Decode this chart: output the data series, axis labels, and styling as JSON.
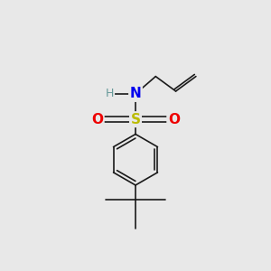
{
  "background_color": "#e8e8e8",
  "bond_color": "#1a1a1a",
  "bond_width": 1.2,
  "N_color": "#0000ee",
  "H_color": "#669999",
  "S_color": "#bbbb00",
  "O_color": "#ee0000",
  "font_size_N": 11,
  "font_size_H": 9,
  "font_size_S": 11,
  "font_size_O": 11,
  "figsize": [
    3.0,
    3.0
  ],
  "dpi": 100,
  "xlim": [
    0,
    10
  ],
  "ylim": [
    0,
    10
  ],
  "Sx": 5.0,
  "Sy": 5.6,
  "Nx": 5.0,
  "Ny": 6.55,
  "Hx": 4.1,
  "Hy": 6.55,
  "ch2x": 5.75,
  "ch2y": 7.2,
  "chx": 6.5,
  "chy": 6.65,
  "ch2ex": 7.25,
  "ch2ey": 7.2,
  "O1x": 3.85,
  "O1y": 5.6,
  "O2x": 6.15,
  "O2y": 5.6,
  "Bcx": 5.0,
  "Bcy": 4.1,
  "Br": 0.95,
  "qcx": 5.0,
  "qcy": 2.6,
  "me1x": 3.9,
  "me1y": 2.6,
  "me2x": 6.1,
  "me2y": 2.6,
  "me3x": 5.0,
  "me3y": 1.55
}
